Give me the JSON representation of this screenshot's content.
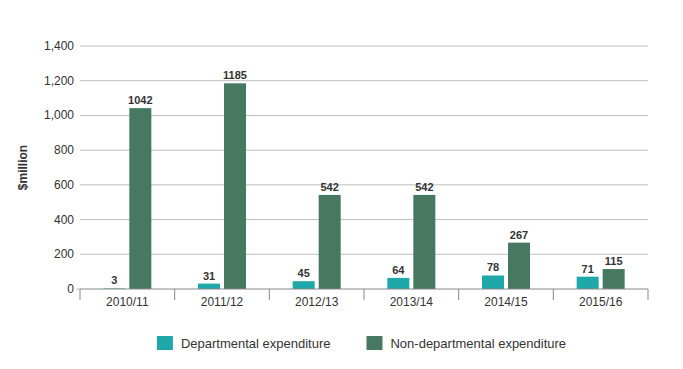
{
  "chart_data": {
    "type": "bar",
    "ylabel": "$million",
    "categories": [
      "2010/11",
      "2011/12",
      "2012/13",
      "2013/14",
      "2014/15",
      "2015/16"
    ],
    "series": [
      {
        "name": "Departmental expenditure",
        "color": "#1fa8aa",
        "values": [
          3,
          31,
          45,
          64,
          78,
          71
        ]
      },
      {
        "name": "Non-departmental expenditure",
        "color": "#477862",
        "values": [
          1042,
          1185,
          542,
          542,
          267,
          115
        ]
      }
    ],
    "ylim": [
      0,
      1400
    ],
    "yticks": [
      0,
      200,
      400,
      600,
      800,
      {
        "value": 1000,
        "label": "1,000"
      },
      {
        "value": 1200,
        "label": "1,200"
      },
      {
        "value": 1400,
        "label": "1,400"
      }
    ],
    "grid": true,
    "legend": "bottom",
    "data_labels": true
  }
}
